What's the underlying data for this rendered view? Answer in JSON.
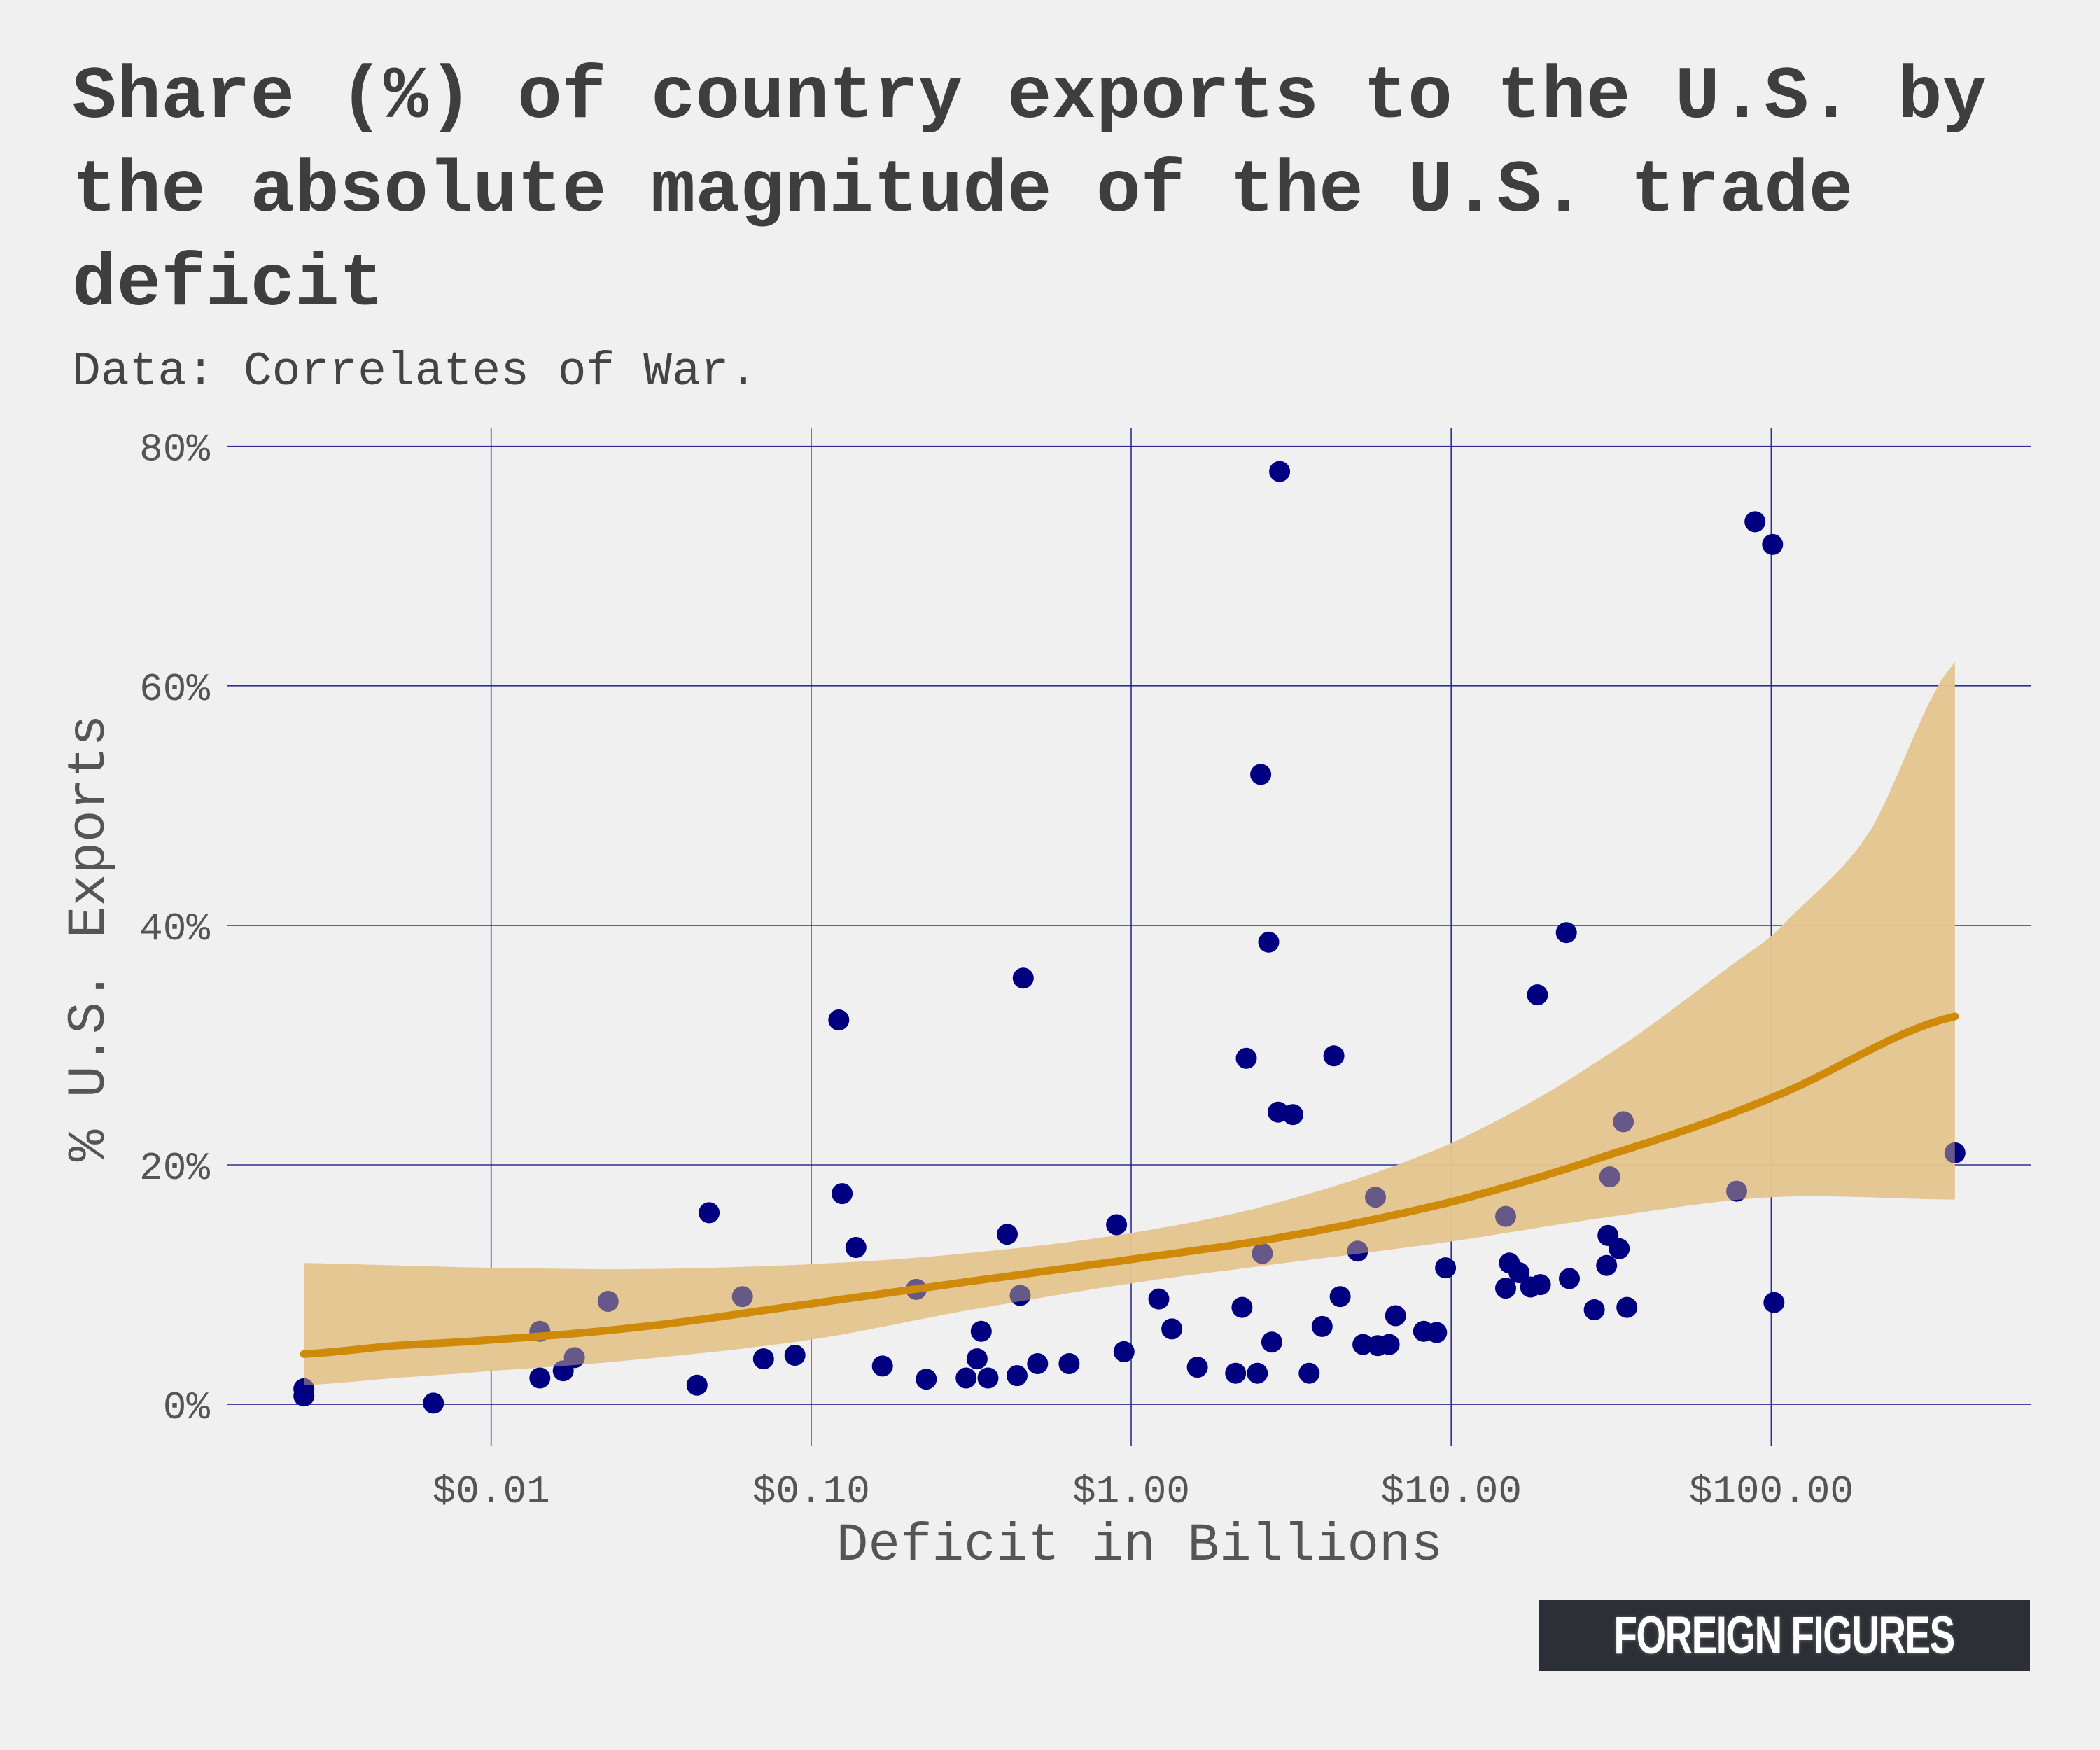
{
  "title": "Share (%) of country exports to the U.S. by the absolute magnitude of the U.S. trade deficit",
  "subtitle": "Data: Correlates of War.",
  "brand": "FOREIGN FIGURES",
  "colors": {
    "background": "#f0f0f0",
    "grid": "#1a1a8c",
    "points": "#000080",
    "fit_line": "#d08a0a",
    "confidence_band": "#e5c690",
    "text": "#3e3e3e",
    "brand_box": "#2c3036"
  },
  "chart_data": {
    "type": "scatter",
    "title": "Share (%) of country exports to the U.S. by the absolute magnitude of the U.S. trade deficit",
    "subtitle": "Data: Correlates of War.",
    "xlabel": "Deficit in Billions",
    "ylabel": "% U.S. Exports",
    "x_scale": "log10",
    "xlim": [
      0.0015,
      650
    ],
    "ylim": [
      -3.5,
      81.5
    ],
    "grid": true,
    "legend": "none",
    "x_ticks": [
      {
        "value": 0.01,
        "label": "$0.01"
      },
      {
        "value": 0.1,
        "label": "$0.10"
      },
      {
        "value": 1,
        "label": "$1.00"
      },
      {
        "value": 10,
        "label": "$10.00"
      },
      {
        "value": 100,
        "label": "$100.00"
      }
    ],
    "y_ticks": [
      {
        "value": 0,
        "label": "0%"
      },
      {
        "value": 20,
        "label": "20%"
      },
      {
        "value": 40,
        "label": "40%"
      },
      {
        "value": 60,
        "label": "60%"
      },
      {
        "value": 80,
        "label": "80%"
      }
    ],
    "points": [
      {
        "x": 0.0026,
        "y": 1.3
      },
      {
        "x": 0.0026,
        "y": 0.7
      },
      {
        "x": 0.0066,
        "y": 0.1
      },
      {
        "x": 0.0142,
        "y": 6.1
      },
      {
        "x": 0.0142,
        "y": 2.2
      },
      {
        "x": 0.0168,
        "y": 2.8
      },
      {
        "x": 0.0182,
        "y": 3.9
      },
      {
        "x": 0.0232,
        "y": 8.6
      },
      {
        "x": 0.044,
        "y": 1.6
      },
      {
        "x": 0.048,
        "y": 16.0
      },
      {
        "x": 0.061,
        "y": 9.0
      },
      {
        "x": 0.071,
        "y": 3.8
      },
      {
        "x": 0.089,
        "y": 4.1
      },
      {
        "x": 0.122,
        "y": 32.1
      },
      {
        "x": 0.125,
        "y": 17.6
      },
      {
        "x": 0.138,
        "y": 13.1
      },
      {
        "x": 0.167,
        "y": 3.2
      },
      {
        "x": 0.213,
        "y": 9.6
      },
      {
        "x": 0.229,
        "y": 2.1
      },
      {
        "x": 0.305,
        "y": 2.2
      },
      {
        "x": 0.33,
        "y": 3.8
      },
      {
        "x": 0.34,
        "y": 6.1
      },
      {
        "x": 0.357,
        "y": 2.2
      },
      {
        "x": 0.41,
        "y": 14.2
      },
      {
        "x": 0.44,
        "y": 2.4
      },
      {
        "x": 0.45,
        "y": 9.1
      },
      {
        "x": 0.46,
        "y": 35.6
      },
      {
        "x": 0.51,
        "y": 3.4
      },
      {
        "x": 0.64,
        "y": 3.4
      },
      {
        "x": 0.9,
        "y": 15.0
      },
      {
        "x": 0.95,
        "y": 4.4
      },
      {
        "x": 1.22,
        "y": 8.8
      },
      {
        "x": 1.34,
        "y": 6.3
      },
      {
        "x": 1.61,
        "y": 3.1
      },
      {
        "x": 2.12,
        "y": 2.6
      },
      {
        "x": 2.22,
        "y": 8.1
      },
      {
        "x": 2.29,
        "y": 28.9
      },
      {
        "x": 2.48,
        "y": 2.6
      },
      {
        "x": 2.54,
        "y": 52.6
      },
      {
        "x": 2.57,
        "y": 12.6
      },
      {
        "x": 2.69,
        "y": 38.6
      },
      {
        "x": 2.75,
        "y": 5.2
      },
      {
        "x": 2.88,
        "y": 24.4
      },
      {
        "x": 2.91,
        "y": 77.9
      },
      {
        "x": 3.2,
        "y": 24.2
      },
      {
        "x": 3.6,
        "y": 2.6
      },
      {
        "x": 3.95,
        "y": 6.5
      },
      {
        "x": 4.3,
        "y": 29.1
      },
      {
        "x": 4.5,
        "y": 9.0
      },
      {
        "x": 5.1,
        "y": 12.8
      },
      {
        "x": 5.3,
        "y": 5.0
      },
      {
        "x": 5.8,
        "y": 17.3
      },
      {
        "x": 5.9,
        "y": 4.9
      },
      {
        "x": 6.4,
        "y": 5.0
      },
      {
        "x": 6.7,
        "y": 7.4
      },
      {
        "x": 8.2,
        "y": 6.1
      },
      {
        "x": 9.0,
        "y": 6.0
      },
      {
        "x": 9.6,
        "y": 11.4
      },
      {
        "x": 14.8,
        "y": 15.7
      },
      {
        "x": 14.8,
        "y": 9.7
      },
      {
        "x": 15.2,
        "y": 11.8
      },
      {
        "x": 16.3,
        "y": 11.0
      },
      {
        "x": 17.7,
        "y": 9.8
      },
      {
        "x": 18.6,
        "y": 34.2
      },
      {
        "x": 19.0,
        "y": 10.0
      },
      {
        "x": 22.9,
        "y": 39.4
      },
      {
        "x": 23.4,
        "y": 10.5
      },
      {
        "x": 28.0,
        "y": 7.9
      },
      {
        "x": 30.6,
        "y": 11.6
      },
      {
        "x": 30.9,
        "y": 14.1
      },
      {
        "x": 31.3,
        "y": 19.0
      },
      {
        "x": 33.5,
        "y": 13.0
      },
      {
        "x": 34.5,
        "y": 23.6
      },
      {
        "x": 35.4,
        "y": 8.1
      },
      {
        "x": 78.0,
        "y": 17.8
      },
      {
        "x": 89.0,
        "y": 73.7
      },
      {
        "x": 101.0,
        "y": 71.8
      },
      {
        "x": 102.0,
        "y": 8.5
      },
      {
        "x": 375.0,
        "y": 21.0
      }
    ],
    "fit": {
      "type": "glm-smooth",
      "line": [
        {
          "x": 0.0026,
          "y": 4.2
        },
        {
          "x": 0.005,
          "y": 4.9
        },
        {
          "x": 0.01,
          "y": 5.4
        },
        {
          "x": 0.03,
          "y": 6.5
        },
        {
          "x": 0.1,
          "y": 8.4
        },
        {
          "x": 0.3,
          "y": 10.2
        },
        {
          "x": 1,
          "y": 12.1
        },
        {
          "x": 3,
          "y": 14.0
        },
        {
          "x": 10,
          "y": 16.9
        },
        {
          "x": 30,
          "y": 20.7
        },
        {
          "x": 100,
          "y": 25.6
        },
        {
          "x": 375,
          "y": 32.4
        }
      ],
      "upper": [
        {
          "x": 0.0026,
          "y": 11.8
        },
        {
          "x": 0.005,
          "y": 11.6
        },
        {
          "x": 0.01,
          "y": 11.4
        },
        {
          "x": 0.03,
          "y": 11.3
        },
        {
          "x": 0.1,
          "y": 11.7
        },
        {
          "x": 0.3,
          "y": 12.6
        },
        {
          "x": 1,
          "y": 14.3
        },
        {
          "x": 3,
          "y": 17.0
        },
        {
          "x": 10,
          "y": 21.8
        },
        {
          "x": 30,
          "y": 29.0
        },
        {
          "x": 100,
          "y": 39.0
        },
        {
          "x": 200,
          "y": 47.5
        },
        {
          "x": 375,
          "y": 62.0
        }
      ],
      "lower": [
        {
          "x": 0.0026,
          "y": 1.6
        },
        {
          "x": 0.005,
          "y": 2.2
        },
        {
          "x": 0.01,
          "y": 2.8
        },
        {
          "x": 0.03,
          "y": 3.8
        },
        {
          "x": 0.1,
          "y": 5.4
        },
        {
          "x": 0.3,
          "y": 7.8
        },
        {
          "x": 1,
          "y": 10.1
        },
        {
          "x": 3,
          "y": 11.8
        },
        {
          "x": 10,
          "y": 13.6
        },
        {
          "x": 30,
          "y": 15.6
        },
        {
          "x": 100,
          "y": 17.3
        },
        {
          "x": 375,
          "y": 17.1
        }
      ]
    }
  }
}
